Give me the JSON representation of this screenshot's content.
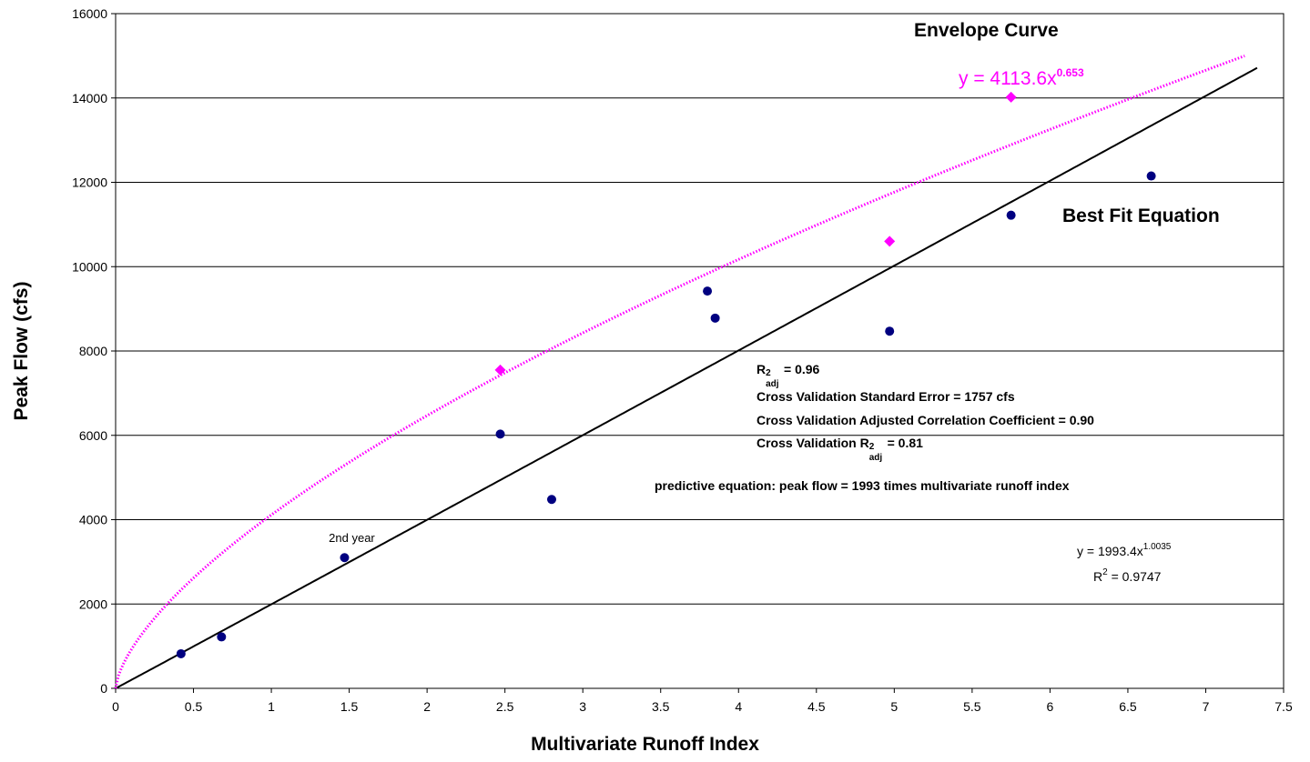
{
  "chart_data": {
    "type": "scatter",
    "xlabel": "Multivariate Runoff Index",
    "ylabel": "Peak Flow (cfs)",
    "xlim": [
      0,
      7.5
    ],
    "ylim": [
      0,
      16000
    ],
    "x_ticks": [
      "0",
      "0.5",
      "1",
      "1.5",
      "2",
      "2.5",
      "3",
      "3.5",
      "4",
      "4.5",
      "5",
      "5.5",
      "6",
      "6.5",
      "7",
      "7.5"
    ],
    "y_ticks": [
      "0",
      "2000",
      "4000",
      "6000",
      "8000",
      "10000",
      "12000",
      "14000",
      "16000"
    ],
    "grid": "horizontal",
    "series": [
      {
        "marker": "circle",
        "color": "#000080",
        "points": [
          {
            "x": 0.42,
            "y": 820
          },
          {
            "x": 0.68,
            "y": 1220
          },
          {
            "x": 1.47,
            "y": 3100
          },
          {
            "x": 2.47,
            "y": 6030
          },
          {
            "x": 2.8,
            "y": 4480
          },
          {
            "x": 3.8,
            "y": 9420
          },
          {
            "x": 3.85,
            "y": 8780
          },
          {
            "x": 4.97,
            "y": 8470
          },
          {
            "x": 5.75,
            "y": 11220
          },
          {
            "x": 6.65,
            "y": 12150
          }
        ]
      },
      {
        "marker": "diamond",
        "color": "#ff00ff",
        "points": [
          {
            "x": 2.47,
            "y": 7550
          },
          {
            "x": 4.97,
            "y": 10600
          },
          {
            "x": 5.75,
            "y": 14020
          }
        ]
      }
    ],
    "fits": [
      {
        "label": "Best Fit Equation",
        "coef": 1993.4,
        "exponent": 1.0035,
        "x_range": [
          0,
          7.33
        ],
        "color": "#000000",
        "style": "solid"
      },
      {
        "label": "Envelope Curve",
        "coef": 4113.6,
        "exponent": 0.653,
        "x_range": [
          0,
          7.25
        ],
        "color": "#ff00ff",
        "style": "dotted"
      }
    ],
    "point_annotation": "2nd year",
    "envelope_title": "Envelope Curve",
    "envelope_eq": {
      "base": "y = 4113.6x",
      "exp": "0.653"
    },
    "best_fit_title": "Best Fit Equation",
    "stats": {
      "r2adj_pre": "R",
      "r2adj_sup": "2",
      "r2adj_sub": "adj",
      "r2adj_post": " = 0.96",
      "line2": "Cross Validation Standard Error = 1757 cfs",
      "line3": "Cross Validation Adjusted Correlation Coefficient = 0.90",
      "line4_pre": "Cross Validation R",
      "line4_sup": "2",
      "line4_sub": "adj",
      "line4_post": " = 0.81"
    },
    "predictive": "predictive equation: peak flow = 1993 times multivariate runoff index",
    "fit_eq": {
      "base": "y = 1993.4x",
      "exp": "1.0035"
    },
    "fit_r2": {
      "pre": "R",
      "sup": "2",
      "post": " = 0.9747"
    }
  }
}
